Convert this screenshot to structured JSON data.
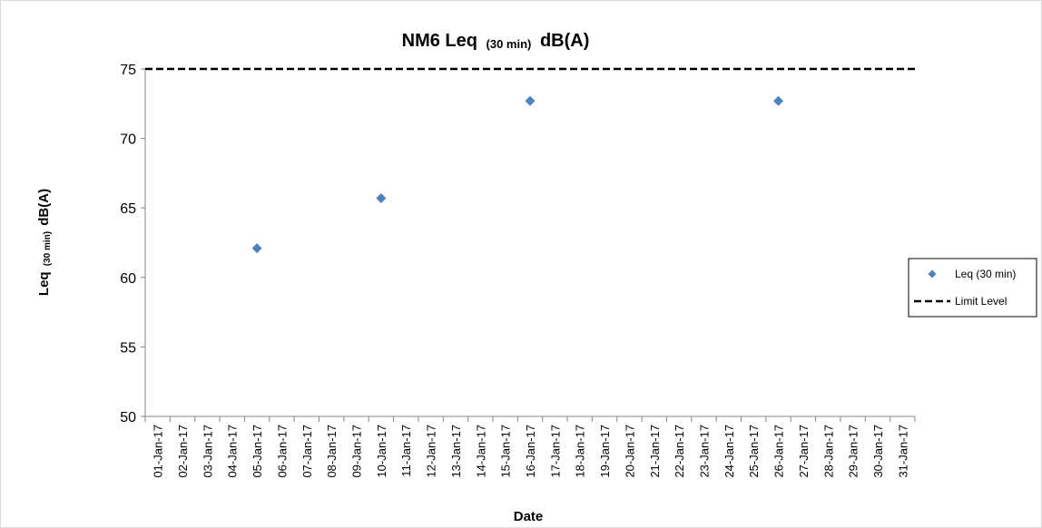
{
  "chart_data": {
    "type": "scatter",
    "title": {
      "main": "NM6 Leq",
      "sub": "(30 min)",
      "unit": "dB(A)"
    },
    "xlabel": "Date",
    "ylabel": {
      "main": "Leq",
      "sub": "(30 min)",
      "unit": "dB(A)"
    },
    "categories": [
      "01-Jan-17",
      "02-Jan-17",
      "03-Jan-17",
      "04-Jan-17",
      "05-Jan-17",
      "06-Jan-17",
      "07-Jan-17",
      "08-Jan-17",
      "09-Jan-17",
      "10-Jan-17",
      "11-Jan-17",
      "12-Jan-17",
      "13-Jan-17",
      "14-Jan-17",
      "15-Jan-17",
      "16-Jan-17",
      "17-Jan-17",
      "18-Jan-17",
      "19-Jan-17",
      "20-Jan-17",
      "21-Jan-17",
      "22-Jan-17",
      "23-Jan-17",
      "24-Jan-17",
      "25-Jan-17",
      "26-Jan-17",
      "27-Jan-17",
      "28-Jan-17",
      "29-Jan-17",
      "30-Jan-17",
      "31-Jan-17"
    ],
    "ylim": [
      50,
      75
    ],
    "yticks": [
      50,
      55,
      60,
      65,
      70,
      75
    ],
    "grid": false,
    "legend_position": "right",
    "series": [
      {
        "name": "Leq (30 min)",
        "kind": "marker",
        "marker": "diamond",
        "color": "#4f81bd",
        "points": [
          {
            "x": "05-Jan-17",
            "y": 62.1
          },
          {
            "x": "10-Jan-17",
            "y": 65.7
          },
          {
            "x": "16-Jan-17",
            "y": 72.7
          },
          {
            "x": "26-Jan-17",
            "y": 72.7
          }
        ]
      },
      {
        "name": "Limit Level",
        "kind": "dashed-line",
        "color": "#000000",
        "y": 75
      }
    ]
  }
}
